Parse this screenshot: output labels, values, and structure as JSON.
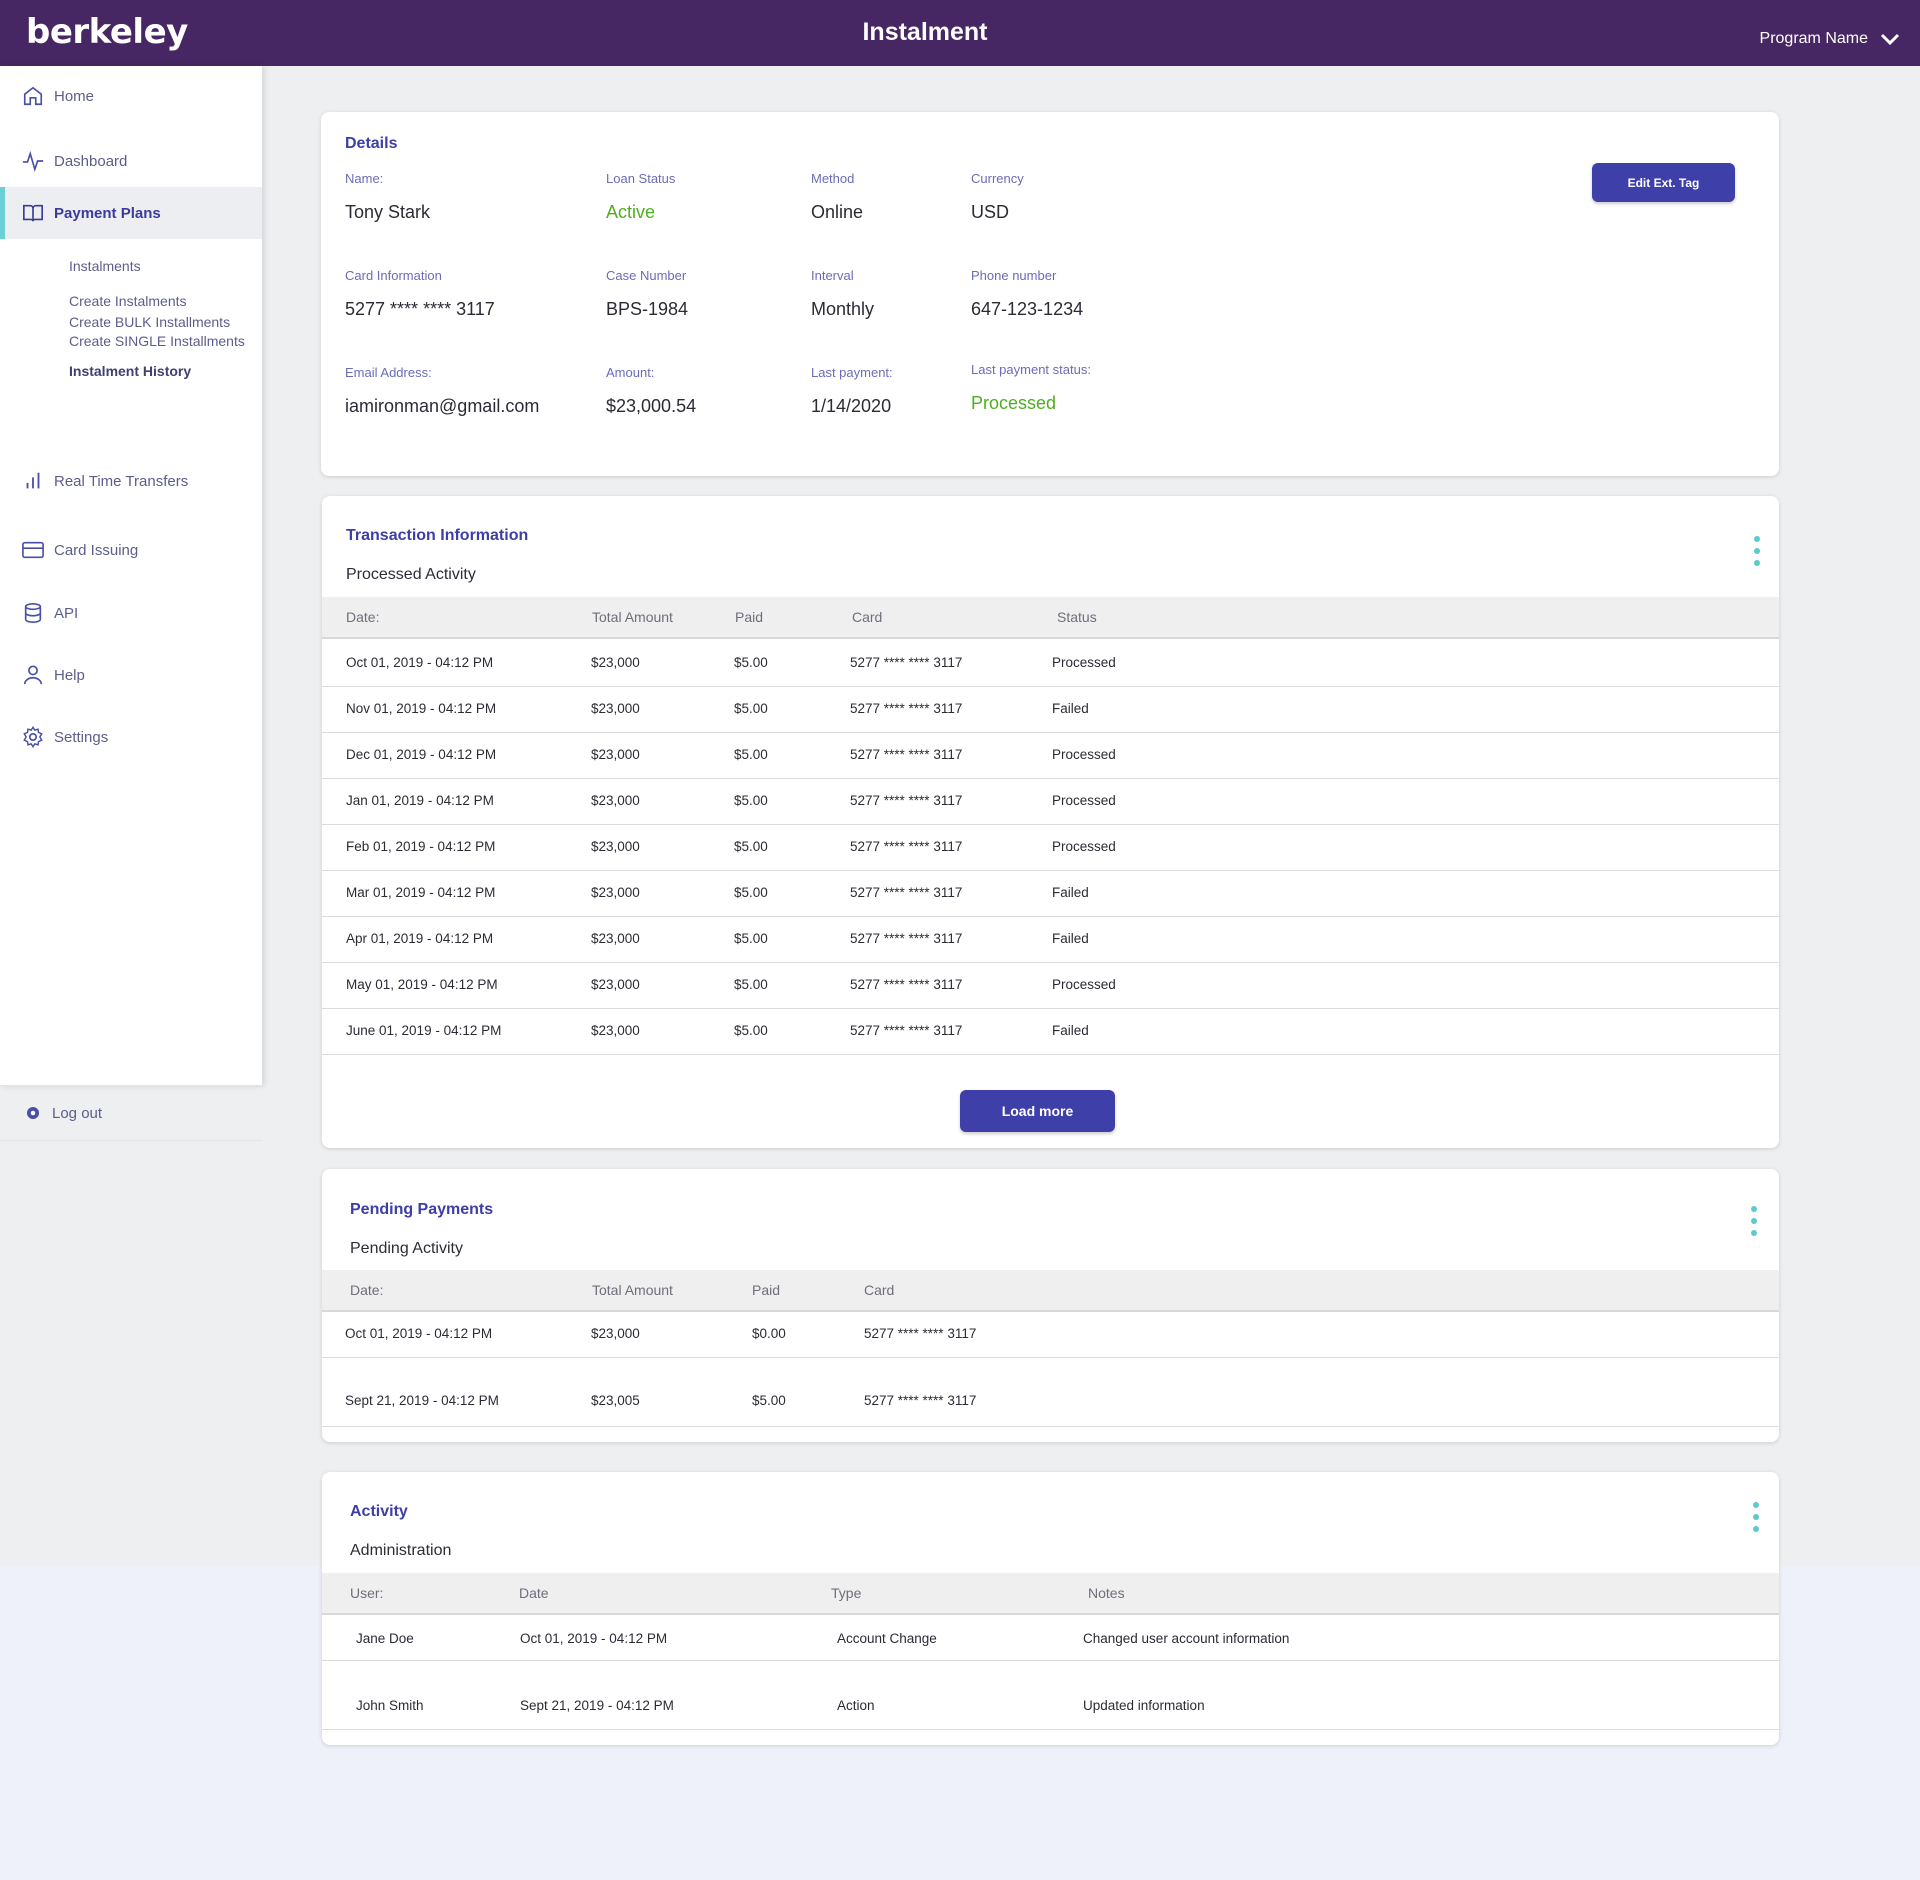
{
  "header": {
    "logo": "berkeley",
    "title": "Instalment",
    "program": "Program Name"
  },
  "sidebar": {
    "items": [
      {
        "label": "Home",
        "icon": "home-icon"
      },
      {
        "label": "Dashboard",
        "icon": "activity-icon"
      },
      {
        "label": "Payment Plans",
        "icon": "book-icon"
      },
      {
        "label": "Real Time Transfers",
        "icon": "bar-chart-icon"
      },
      {
        "label": "Card Issuing",
        "icon": "credit-card-icon"
      },
      {
        "label": "API",
        "icon": "database-icon"
      },
      {
        "label": "Help",
        "icon": "user-icon"
      },
      {
        "label": "Settings",
        "icon": "gear-icon"
      }
    ],
    "sub_items": [
      "Instalments",
      "Create Instalments",
      "Create BULK Installments",
      "Create SINGLE Installments",
      "Instalment History"
    ],
    "logout": "Log out"
  },
  "details": {
    "title": "Details",
    "edit_button": "Edit Ext. Tag",
    "fields": [
      {
        "label": "Name:",
        "value": "Tony Stark"
      },
      {
        "label": "Loan Status",
        "value": "Active"
      },
      {
        "label": "Method",
        "value": "Online"
      },
      {
        "label": "Currency",
        "value": "USD"
      },
      {
        "label": "Card Information",
        "value": "5277 **** **** 3117"
      },
      {
        "label": "Case Number",
        "value": "BPS-1984"
      },
      {
        "label": "Interval",
        "value": "Monthly"
      },
      {
        "label": "Phone number",
        "value": "647-123-1234"
      },
      {
        "label": "Email Address:",
        "value": "iamironman@gmail.com"
      },
      {
        "label": "Amount:",
        "value": "$23,000.54"
      },
      {
        "label": "Last payment:",
        "value": "1/14/2020"
      },
      {
        "label": "Last payment status:",
        "value": "Processed"
      }
    ]
  },
  "transactions": {
    "title": "Transaction Information",
    "subtitle": "Processed Activity",
    "columns": [
      "Date:",
      "Total Amount",
      "Paid",
      "Card",
      "Status"
    ],
    "rows": [
      [
        "Oct 01, 2019 - 04:12 PM",
        "$23,000",
        "$5.00",
        "5277 **** **** 3117",
        "Processed"
      ],
      [
        "Nov 01, 2019 - 04:12 PM",
        "$23,000",
        "$5.00",
        "5277 **** **** 3117",
        "Failed"
      ],
      [
        "Dec 01, 2019 - 04:12 PM",
        "$23,000",
        "$5.00",
        "5277 **** **** 3117",
        "Processed"
      ],
      [
        "Jan 01, 2019 - 04:12 PM",
        "$23,000",
        "$5.00",
        "5277 **** **** 3117",
        "Processed"
      ],
      [
        "Feb 01, 2019 - 04:12 PM",
        "$23,000",
        "$5.00",
        "5277 **** **** 3117",
        "Processed"
      ],
      [
        "Mar 01, 2019 - 04:12 PM",
        "$23,000",
        "$5.00",
        "5277 **** **** 3117",
        "Failed"
      ],
      [
        "Apr 01, 2019 - 04:12 PM",
        "$23,000",
        "$5.00",
        "5277 **** **** 3117",
        "Failed"
      ],
      [
        "May 01, 2019 - 04:12 PM",
        "$23,000",
        "$5.00",
        "5277 **** **** 3117",
        "Processed"
      ],
      [
        "June 01, 2019 - 04:12 PM",
        "$23,000",
        "$5.00",
        "5277 **** **** 3117",
        "Failed"
      ]
    ],
    "load_more": "Load more"
  },
  "pending": {
    "title": "Pending Payments",
    "subtitle": "Pending Activity",
    "columns": [
      "Date:",
      "Total Amount",
      "Paid",
      "Card"
    ],
    "rows": [
      [
        "Oct 01, 2019 - 04:12 PM",
        "$23,000",
        "$0.00",
        "5277 **** **** 3117"
      ],
      [
        "Sept 21, 2019 - 04:12 PM",
        "$23,005",
        "$5.00",
        "5277 **** **** 3117"
      ]
    ]
  },
  "activity": {
    "title": "Activity",
    "subtitle": "Administration",
    "columns": [
      "User:",
      "Date",
      "Type",
      "Notes"
    ],
    "rows": [
      [
        "Jane Doe",
        "Oct 01, 2019 - 04:12 PM",
        "Account Change",
        "Changed user account information"
      ],
      [
        "John Smith",
        "Sept 21, 2019 - 04:12 PM",
        "Action",
        "Updated information"
      ]
    ]
  },
  "colors": {
    "header_bg": "#472763",
    "accent": "#3e3fa8",
    "success": "#4fae1f",
    "error": "#d8262a",
    "teal": "#5cc9cb"
  }
}
